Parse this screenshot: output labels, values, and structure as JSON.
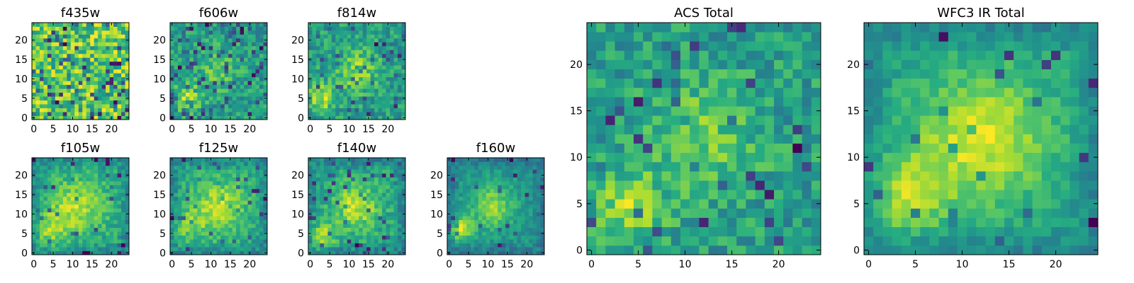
{
  "figure_title": "",
  "chart_data": [
    {
      "id": "f435w",
      "type": "heatmap",
      "title": "f435w",
      "grid_size": 25,
      "seed": 11,
      "fields": [],
      "noise": 0.34,
      "baseline": 0.68,
      "contrast": 1.05,
      "ring": false,
      "dark_spots": 0.12,
      "x_ticks": [
        0,
        5,
        10,
        15,
        20
      ],
      "y_ticks": [
        0,
        5,
        10,
        15,
        20
      ],
      "x_tick_labels": [
        "0",
        "5",
        "10",
        "15",
        "20"
      ],
      "y_tick_labels": [
        "0",
        "5",
        "10",
        "15",
        "20"
      ],
      "colormap": "viridis"
    },
    {
      "id": "f606w",
      "type": "heatmap",
      "title": "f606w",
      "grid_size": 25,
      "seed": 23,
      "fields": [
        [
          4,
          5,
          0.55,
          2.5
        ],
        [
          12,
          12,
          0.32,
          4
        ]
      ],
      "noise": 0.3,
      "baseline": 0.42,
      "contrast": 1.0,
      "ring": false,
      "dark_spots": 0.1,
      "x_ticks": [
        0,
        5,
        10,
        15,
        20
      ],
      "y_ticks": [
        0,
        5,
        10,
        15,
        20
      ],
      "x_tick_labels": [
        "0",
        "5",
        "10",
        "15",
        "20"
      ],
      "y_tick_labels": [
        "0",
        "5",
        "10",
        "15",
        "20"
      ],
      "colormap": "viridis"
    },
    {
      "id": "f814w",
      "type": "heatmap",
      "title": "f814w",
      "grid_size": 25,
      "seed": 37,
      "fields": [
        [
          3,
          5,
          0.55,
          2.5
        ],
        [
          12,
          12,
          0.45,
          4
        ]
      ],
      "noise": 0.28,
      "baseline": 0.46,
      "contrast": 1.0,
      "ring": false,
      "dark_spots": 0.08,
      "x_ticks": [
        0,
        5,
        10,
        15,
        20
      ],
      "y_ticks": [
        0,
        5,
        10,
        15,
        20
      ],
      "x_tick_labels": [
        "0",
        "5",
        "10",
        "15",
        "20"
      ],
      "y_tick_labels": [
        "0",
        "5",
        "10",
        "15",
        "20"
      ],
      "colormap": "viridis"
    },
    {
      "id": "f105w",
      "type": "heatmap",
      "title": "f105w",
      "grid_size": 25,
      "seed": 41,
      "fields": [
        [
          11,
          12,
          0.5,
          5
        ],
        [
          4,
          6,
          0.35,
          3
        ]
      ],
      "noise": 0.2,
      "baseline": 0.5,
      "contrast": 1.0,
      "ring": true,
      "dark_spots": 0.04,
      "x_ticks": [
        0,
        5,
        10,
        15,
        20
      ],
      "y_ticks": [
        0,
        5,
        10,
        15,
        20
      ],
      "x_tick_labels": [
        "0",
        "5",
        "10",
        "15",
        "20"
      ],
      "y_tick_labels": [
        "0",
        "5",
        "10",
        "15",
        "20"
      ],
      "colormap": "viridis"
    },
    {
      "id": "f125w",
      "type": "heatmap",
      "title": "f125w",
      "grid_size": 25,
      "seed": 53,
      "fields": [
        [
          12,
          12,
          0.55,
          5
        ],
        [
          4,
          7,
          0.3,
          3
        ]
      ],
      "noise": 0.2,
      "baseline": 0.48,
      "contrast": 1.0,
      "ring": true,
      "dark_spots": 0.04,
      "x_ticks": [
        0,
        5,
        10,
        15,
        20
      ],
      "y_ticks": [
        0,
        5,
        10,
        15,
        20
      ],
      "x_tick_labels": [
        "0",
        "5",
        "10",
        "15",
        "20"
      ],
      "y_tick_labels": [
        "0",
        "5",
        "10",
        "15",
        "20"
      ],
      "colormap": "viridis"
    },
    {
      "id": "f140w",
      "type": "heatmap",
      "title": "f140w",
      "grid_size": 25,
      "seed": 67,
      "fields": [
        [
          12,
          12,
          0.55,
          4
        ],
        [
          3,
          5,
          0.45,
          2.5
        ]
      ],
      "noise": 0.2,
      "baseline": 0.46,
      "contrast": 1.0,
      "ring": true,
      "dark_spots": 0.05,
      "x_ticks": [
        0,
        5,
        10,
        15,
        20
      ],
      "y_ticks": [
        0,
        5,
        10,
        15,
        20
      ],
      "x_tick_labels": [
        "0",
        "5",
        "10",
        "15",
        "20"
      ],
      "y_tick_labels": [
        "0",
        "5",
        "10",
        "15",
        "20"
      ],
      "colormap": "viridis"
    },
    {
      "id": "f160w",
      "type": "heatmap",
      "title": "f160w",
      "grid_size": 25,
      "seed": 79,
      "fields": [
        [
          3,
          6,
          0.75,
          2
        ],
        [
          11,
          12,
          0.55,
          4
        ]
      ],
      "noise": 0.16,
      "baseline": 0.34,
      "contrast": 1.1,
      "ring": true,
      "dark_spots": 0.05,
      "x_ticks": [
        0,
        5,
        10,
        15,
        20
      ],
      "y_ticks": [
        0,
        5,
        10,
        15,
        20
      ],
      "x_tick_labels": [
        "0",
        "5",
        "10",
        "15",
        "20"
      ],
      "y_tick_labels": [
        "0",
        "5",
        "10",
        "15",
        "20"
      ],
      "colormap": "viridis"
    },
    {
      "id": "acs_total",
      "type": "heatmap",
      "title": "ACS Total",
      "grid_size": 25,
      "seed": 97,
      "fields": [
        [
          4,
          5,
          0.5,
          2.5
        ],
        [
          12,
          12,
          0.4,
          4
        ]
      ],
      "noise": 0.26,
      "baseline": 0.5,
      "contrast": 1.0,
      "ring": false,
      "dark_spots": 0.06,
      "x_ticks": [
        0,
        5,
        10,
        15,
        20
      ],
      "y_ticks": [
        0,
        5,
        10,
        15,
        20
      ],
      "x_tick_labels": [
        "0",
        "5",
        "10",
        "15",
        "20"
      ],
      "y_tick_labels": [
        "0",
        "5",
        "10",
        "15",
        "20"
      ],
      "colormap": "viridis"
    },
    {
      "id": "wfc3_ir_total",
      "type": "heatmap",
      "title": "WFC3 IR Total",
      "grid_size": 25,
      "seed": 113,
      "fields": [
        [
          12,
          12,
          0.6,
          5
        ],
        [
          4,
          6,
          0.45,
          3
        ]
      ],
      "noise": 0.14,
      "baseline": 0.42,
      "contrast": 1.05,
      "ring": true,
      "dark_spots": 0.04,
      "x_ticks": [
        0,
        5,
        10,
        15,
        20
      ],
      "y_ticks": [
        0,
        5,
        10,
        15,
        20
      ],
      "x_tick_labels": [
        "0",
        "5",
        "10",
        "15",
        "20"
      ],
      "y_tick_labels": [
        "0",
        "5",
        "10",
        "15",
        "20"
      ],
      "colormap": "viridis"
    }
  ]
}
